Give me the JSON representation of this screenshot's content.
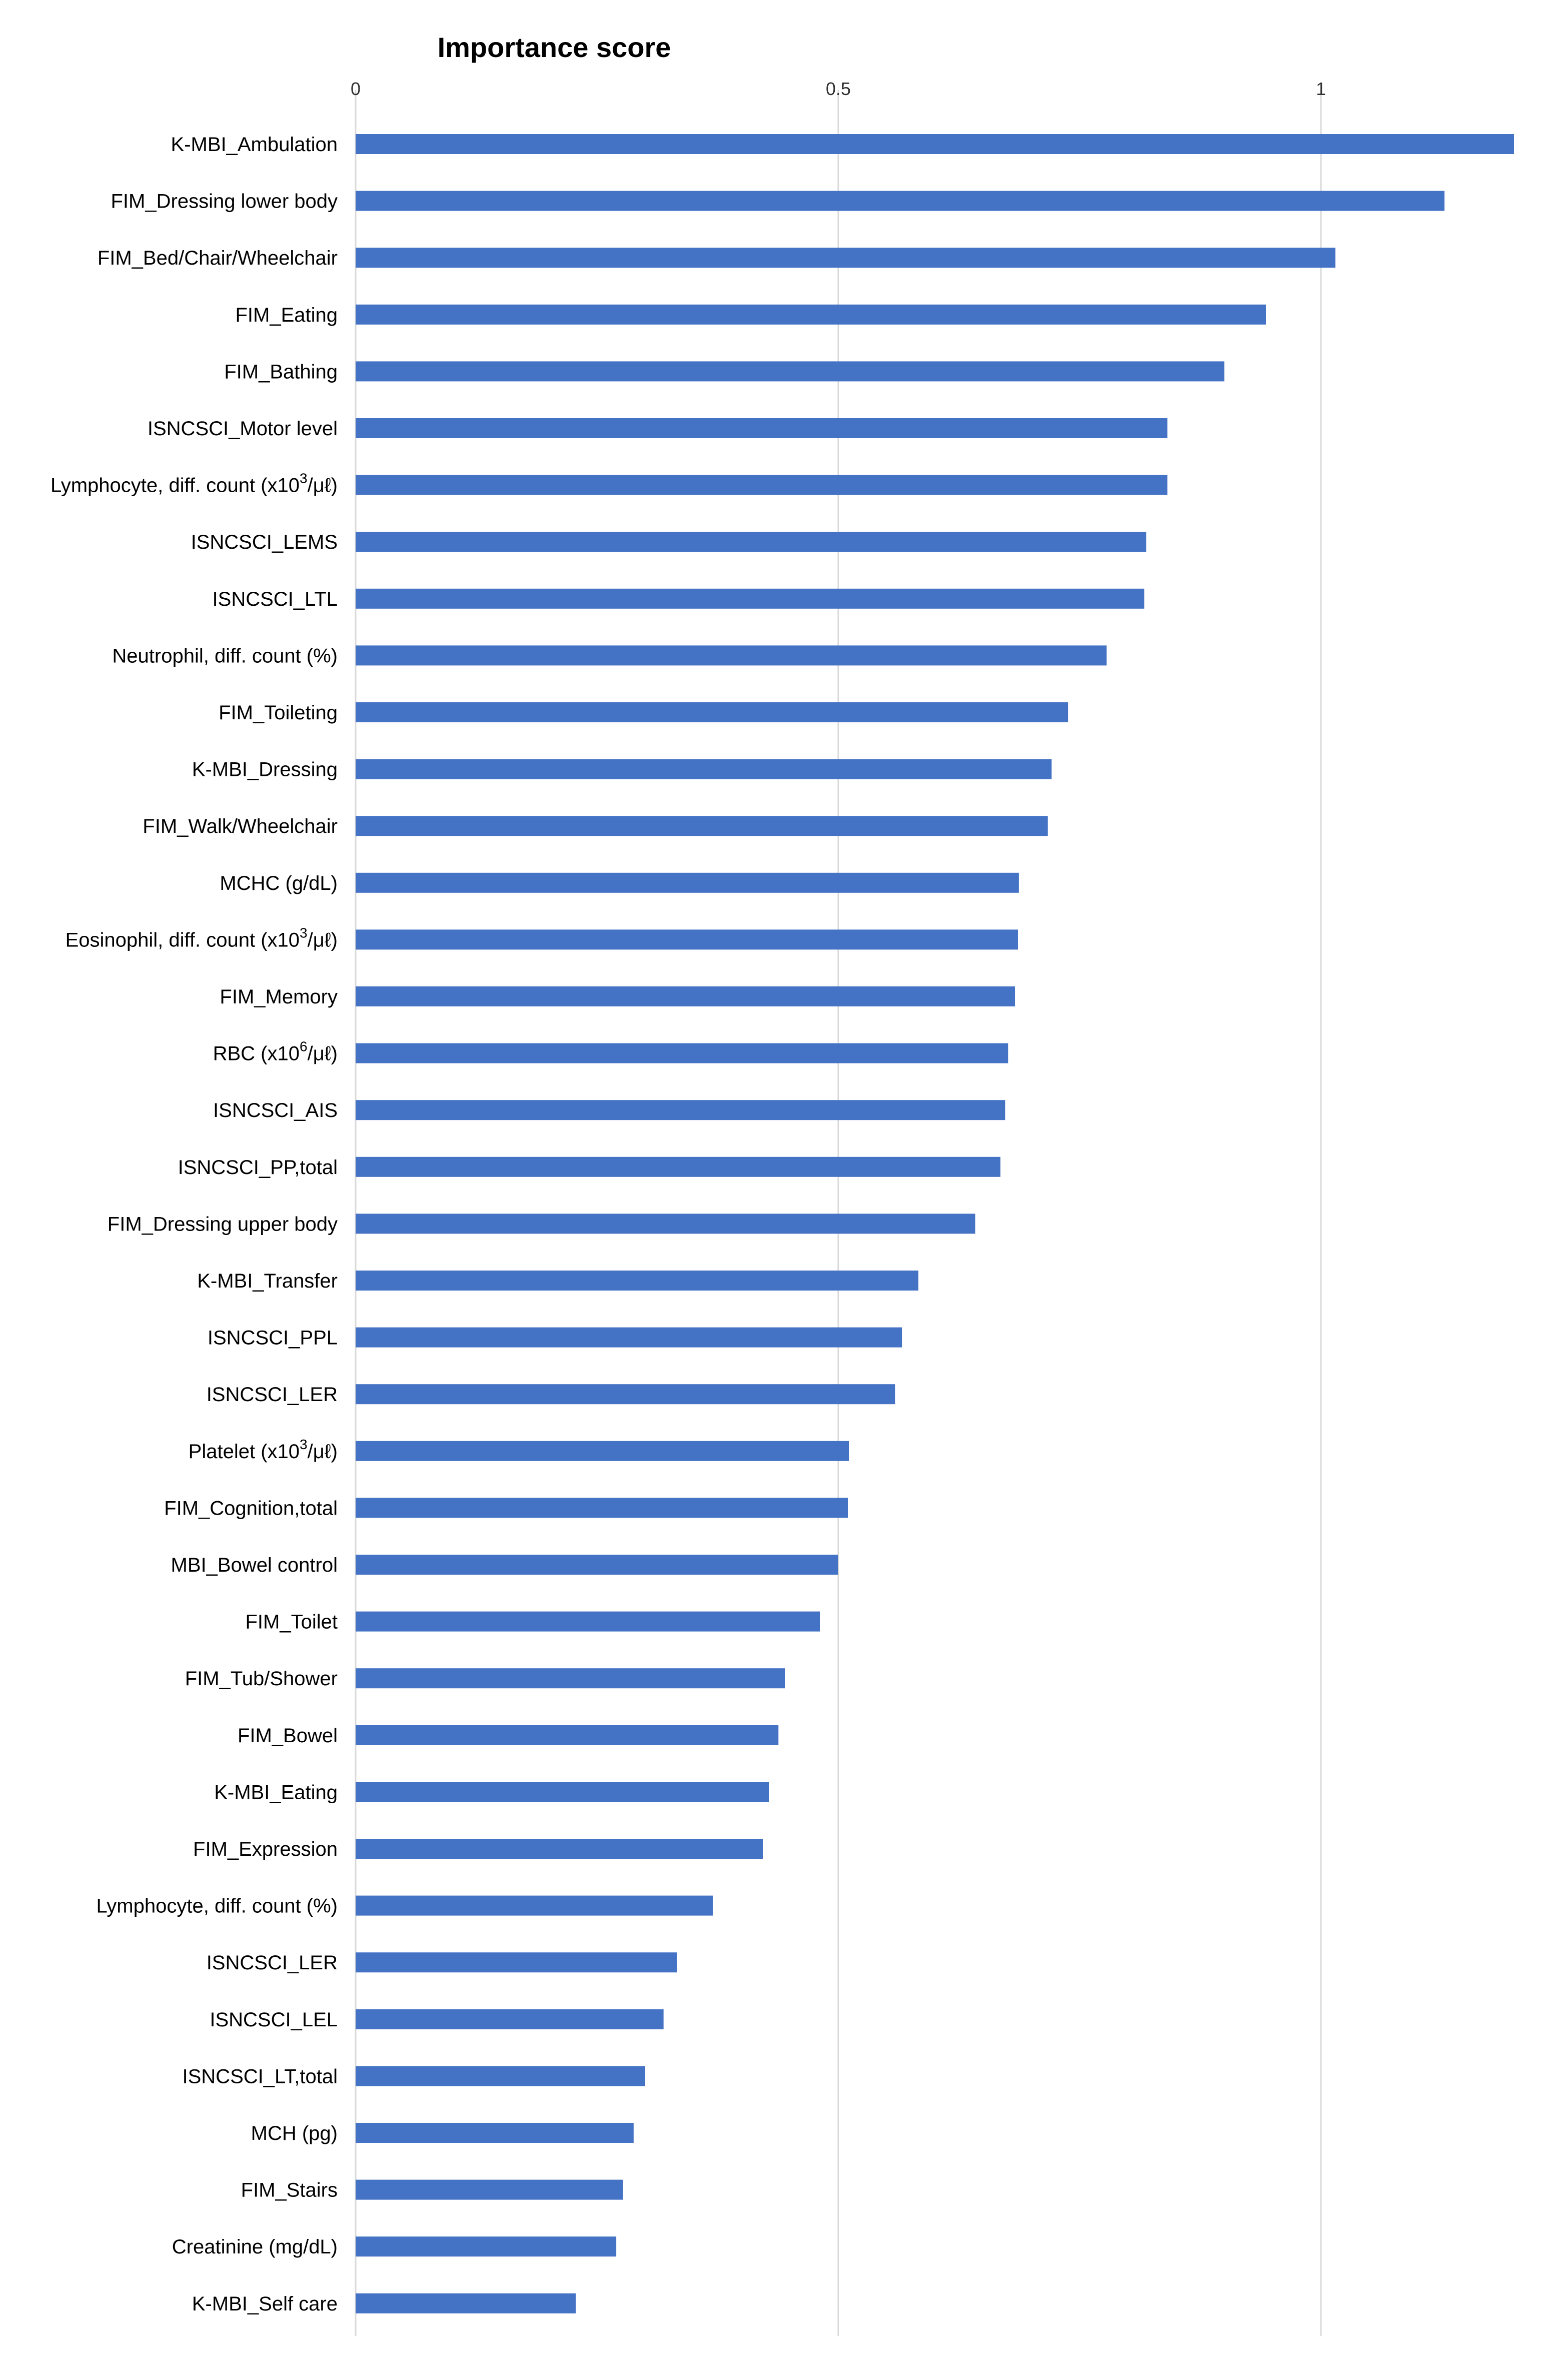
{
  "chart_data": {
    "type": "bar",
    "orientation": "horizontal",
    "title": "Importance score",
    "xlabel": "",
    "ylabel": "",
    "xlim": [
      0,
      1.2
    ],
    "ticks": [
      {
        "value": 0,
        "label": "0"
      },
      {
        "value": 0.5,
        "label": "0.5"
      },
      {
        "value": 1,
        "label": "1"
      }
    ],
    "grid": true,
    "color": "#4472C4",
    "categories": [
      {
        "label": "K-MBI_Ambulation"
      },
      {
        "label": "FIM_Dressing lower body"
      },
      {
        "label": "FIM_Bed/Chair/Wheelchair"
      },
      {
        "label": "FIM_Eating"
      },
      {
        "label": "FIM_Bathing"
      },
      {
        "label": "ISNCSCI_Motor level"
      },
      {
        "label": "Lymphocyte, diff. count (x10",
        "sup": "3",
        "suffix": "/μℓ)"
      },
      {
        "label": "ISNCSCI_LEMS"
      },
      {
        "label": "ISNCSCI_LTL"
      },
      {
        "label": "Neutrophil, diff. count (%)"
      },
      {
        "label": "FIM_Toileting"
      },
      {
        "label": "K-MBI_Dressing"
      },
      {
        "label": "FIM_Walk/Wheelchair"
      },
      {
        "label": "MCHC (g/dL)"
      },
      {
        "label": "Eosinophil, diff. count (x10",
        "sup": "3",
        "suffix": "/μℓ)"
      },
      {
        "label": "FIM_Memory"
      },
      {
        "label": "RBC (x10",
        "sup": "6",
        "suffix": "/μℓ)"
      },
      {
        "label": "ISNCSCI_AIS"
      },
      {
        "label": "ISNCSCI_PP,total"
      },
      {
        "label": "FIM_Dressing upper body"
      },
      {
        "label": "K-MBI_Transfer"
      },
      {
        "label": "ISNCSCI_PPL"
      },
      {
        "label": "ISNCSCI_LER"
      },
      {
        "label": "Platelet (x10",
        "sup": "3",
        "suffix": "/μℓ)"
      },
      {
        "label": "FIM_Cognition,total"
      },
      {
        "label": "MBI_Bowel control"
      },
      {
        "label": "FIM_Toilet"
      },
      {
        "label": "FIM_Tub/Shower"
      },
      {
        "label": "FIM_Bowel"
      },
      {
        "label": "K-MBI_Eating"
      },
      {
        "label": "FIM_Expression"
      },
      {
        "label": "Lymphocyte, diff. count (%)"
      },
      {
        "label": "ISNCSCI_LER"
      },
      {
        "label": "ISNCSCI_LEL"
      },
      {
        "label": "ISNCSCI_LT,total"
      },
      {
        "label": "MCH (pg)"
      },
      {
        "label": "FIM_Stairs"
      },
      {
        "label": "Creatinine (mg/dL)"
      },
      {
        "label": "K-MBI_Self care"
      }
    ],
    "values": [
      1.2,
      1.128,
      1.015,
      0.943,
      0.9,
      0.841,
      0.841,
      0.819,
      0.817,
      0.778,
      0.738,
      0.721,
      0.717,
      0.687,
      0.686,
      0.683,
      0.676,
      0.673,
      0.668,
      0.642,
      0.583,
      0.566,
      0.559,
      0.511,
      0.51,
      0.5,
      0.481,
      0.445,
      0.438,
      0.428,
      0.422,
      0.37,
      0.333,
      0.319,
      0.3,
      0.288,
      0.277,
      0.27,
      0.228
    ]
  }
}
